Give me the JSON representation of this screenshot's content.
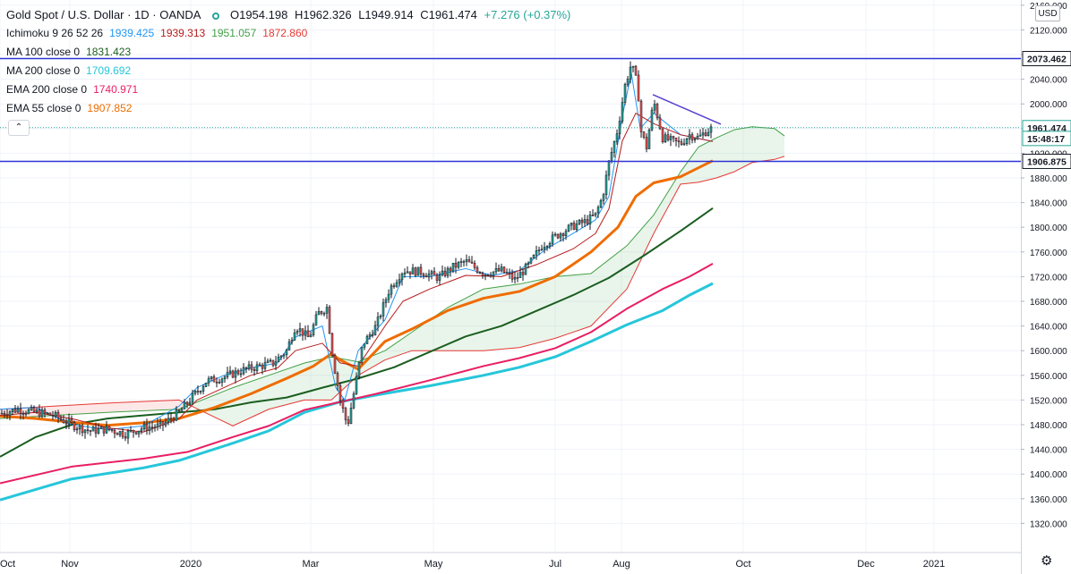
{
  "legend": {
    "symbol": "Gold Spot / U.S. Dollar · 1D · OANDA",
    "ohlc": {
      "open": "O1954.198",
      "high": "H1962.326",
      "low": "L1949.914",
      "close": "C1961.474",
      "change": "+7.276 (+0.37%)"
    },
    "indicators": [
      {
        "label": "Ichimoku 9 26 52 26",
        "values": [
          {
            "text": "1939.425",
            "color": "#2196f3"
          },
          {
            "text": "1939.313",
            "color": "#b71c1c"
          },
          {
            "text": "1951.057",
            "color": "#43a047"
          },
          {
            "text": "1872.860",
            "color": "#e53935"
          }
        ]
      },
      {
        "label": "MA 100 close 0",
        "values": [
          {
            "text": "1831.423",
            "color": "#1b5e20"
          }
        ]
      },
      {
        "label": "MA 200 close 0",
        "values": [
          {
            "text": "1709.692",
            "color": "#26c6da"
          }
        ]
      },
      {
        "label": "EMA 200 close 0",
        "values": [
          {
            "text": "1740.971",
            "color": "#e91e63"
          }
        ]
      },
      {
        "label": "EMA 55 close 0",
        "values": [
          {
            "text": "1907.852",
            "color": "#ef6c00"
          }
        ]
      }
    ]
  },
  "currency": "USD",
  "chart_data": {
    "type": "line",
    "subtype": "candlestick-with-indicators",
    "price_axis": {
      "ticks": [
        "2160.000",
        "2120.000",
        "2080.000",
        "2040.000",
        "2000.000",
        "1960.000",
        "1920.000",
        "1880.000",
        "1840.000",
        "1800.000",
        "1760.000",
        "1720.000",
        "1680.000",
        "1640.000",
        "1600.000",
        "1560.000",
        "1520.000",
        "1480.000",
        "1440.000",
        "1400.000",
        "1360.000",
        "1320.000"
      ],
      "range": [
        1292,
        2178
      ]
    },
    "time_axis": {
      "labels": [
        "Oct",
        "Nov",
        "2020",
        "Mar",
        "May",
        "Jul",
        "Aug",
        "Oct",
        "Dec",
        "2021"
      ]
    },
    "price_labels": [
      {
        "text": "2073.462",
        "price": 2073.462,
        "style": "hline"
      },
      {
        "text": "1961.474",
        "price": 1961.474,
        "style": "last"
      },
      {
        "text": "15:48:17",
        "price": 1944,
        "style": "countdown"
      },
      {
        "text": "1906.875",
        "price": 1906.875,
        "style": "hline"
      }
    ],
    "horizontal_lines": [
      2073.462,
      1906.875
    ],
    "trendline": {
      "start": {
        "price": 2015
      },
      "end": {
        "price": 1967
      }
    },
    "series": [
      {
        "name": "MA 200",
        "color": "#26c6da",
        "points": [
          [
            0,
            1358
          ],
          [
            80,
            1392
          ],
          [
            160,
            1410
          ],
          [
            200,
            1422
          ],
          [
            260,
            1450
          ],
          [
            300,
            1470
          ],
          [
            340,
            1500
          ],
          [
            380,
            1517
          ],
          [
            420,
            1528
          ],
          [
            480,
            1543
          ],
          [
            540,
            1560
          ],
          [
            580,
            1573
          ],
          [
            620,
            1590
          ],
          [
            660,
            1615
          ],
          [
            700,
            1642
          ],
          [
            740,
            1665
          ],
          [
            770,
            1690
          ],
          [
            796,
            1709
          ]
        ]
      },
      {
        "name": "EMA 200",
        "color": "#e91e63",
        "points": [
          [
            0,
            1385
          ],
          [
            80,
            1412
          ],
          [
            160,
            1425
          ],
          [
            210,
            1436
          ],
          [
            260,
            1460
          ],
          [
            300,
            1478
          ],
          [
            340,
            1504
          ],
          [
            380,
            1517
          ],
          [
            420,
            1530
          ],
          [
            480,
            1552
          ],
          [
            540,
            1575
          ],
          [
            580,
            1588
          ],
          [
            620,
            1604
          ],
          [
            660,
            1630
          ],
          [
            700,
            1668
          ],
          [
            740,
            1700
          ],
          [
            770,
            1720
          ],
          [
            796,
            1741
          ]
        ]
      },
      {
        "name": "MA 100",
        "color": "#1b5e20",
        "points": [
          [
            0,
            1428
          ],
          [
            40,
            1460
          ],
          [
            80,
            1480
          ],
          [
            120,
            1490
          ],
          [
            160,
            1495
          ],
          [
            200,
            1500
          ],
          [
            240,
            1505
          ],
          [
            280,
            1516
          ],
          [
            320,
            1524
          ],
          [
            360,
            1540
          ],
          [
            400,
            1555
          ],
          [
            440,
            1573
          ],
          [
            480,
            1598
          ],
          [
            520,
            1623
          ],
          [
            560,
            1640
          ],
          [
            600,
            1665
          ],
          [
            640,
            1690
          ],
          [
            680,
            1718
          ],
          [
            720,
            1755
          ],
          [
            760,
            1794
          ],
          [
            796,
            1831
          ]
        ]
      },
      {
        "name": "EMA 55",
        "color": "#ef6c00",
        "points": [
          [
            0,
            1494
          ],
          [
            40,
            1490
          ],
          [
            80,
            1484
          ],
          [
            120,
            1479
          ],
          [
            160,
            1483
          ],
          [
            200,
            1490
          ],
          [
            240,
            1508
          ],
          [
            280,
            1530
          ],
          [
            320,
            1555
          ],
          [
            350,
            1575
          ],
          [
            370,
            1595
          ],
          [
            380,
            1585
          ],
          [
            400,
            1570
          ],
          [
            430,
            1615
          ],
          [
            460,
            1635
          ],
          [
            500,
            1665
          ],
          [
            540,
            1685
          ],
          [
            580,
            1696
          ],
          [
            620,
            1720
          ],
          [
            660,
            1760
          ],
          [
            690,
            1800
          ],
          [
            710,
            1850
          ],
          [
            730,
            1872
          ],
          [
            760,
            1882
          ],
          [
            796,
            1908
          ]
        ]
      },
      {
        "name": "Tenkan",
        "color": "#2196f3",
        "points": [
          [
            0,
            1505
          ],
          [
            40,
            1508
          ],
          [
            80,
            1480
          ],
          [
            120,
            1472
          ],
          [
            160,
            1478
          ],
          [
            200,
            1510
          ],
          [
            220,
            1540
          ],
          [
            250,
            1560
          ],
          [
            280,
            1572
          ],
          [
            310,
            1580
          ],
          [
            330,
            1622
          ],
          [
            360,
            1640
          ],
          [
            375,
            1540
          ],
          [
            385,
            1520
          ],
          [
            400,
            1600
          ],
          [
            430,
            1650
          ],
          [
            450,
            1720
          ],
          [
            480,
            1720
          ],
          [
            520,
            1733
          ],
          [
            550,
            1722
          ],
          [
            580,
            1730
          ],
          [
            610,
            1765
          ],
          [
            640,
            1790
          ],
          [
            665,
            1812
          ],
          [
            680,
            1850
          ],
          [
            695,
            1980
          ],
          [
            705,
            2050
          ],
          [
            715,
            1960
          ],
          [
            730,
            1985
          ],
          [
            760,
            1950
          ],
          [
            796,
            1939
          ]
        ]
      },
      {
        "name": "Kijun",
        "color": "#b71c1c",
        "points": [
          [
            0,
            1495
          ],
          [
            40,
            1500
          ],
          [
            80,
            1490
          ],
          [
            120,
            1475
          ],
          [
            160,
            1468
          ],
          [
            200,
            1490
          ],
          [
            220,
            1520
          ],
          [
            250,
            1540
          ],
          [
            280,
            1560
          ],
          [
            310,
            1572
          ],
          [
            330,
            1600
          ],
          [
            360,
            1612
          ],
          [
            380,
            1580
          ],
          [
            400,
            1575
          ],
          [
            430,
            1640
          ],
          [
            450,
            1680
          ],
          [
            480,
            1700
          ],
          [
            520,
            1722
          ],
          [
            560,
            1720
          ],
          [
            600,
            1740
          ],
          [
            640,
            1765
          ],
          [
            665,
            1790
          ],
          [
            680,
            1830
          ],
          [
            695,
            1940
          ],
          [
            710,
            1985
          ],
          [
            730,
            1968
          ],
          [
            760,
            1950
          ],
          [
            796,
            1939
          ]
        ]
      }
    ],
    "cloud": {
      "spanA": {
        "color": "#43a047",
        "points": [
          [
            0,
            1490
          ],
          [
            60,
            1495
          ],
          [
            120,
            1500
          ],
          [
            200,
            1505
          ],
          [
            260,
            1540
          ],
          [
            300,
            1560
          ],
          [
            340,
            1580
          ],
          [
            370,
            1590
          ],
          [
            400,
            1582
          ],
          [
            430,
            1600
          ],
          [
            460,
            1630
          ],
          [
            500,
            1670
          ],
          [
            540,
            1700
          ],
          [
            580,
            1708
          ],
          [
            620,
            1720
          ],
          [
            660,
            1725
          ],
          [
            700,
            1770
          ],
          [
            730,
            1820
          ],
          [
            760,
            1890
          ],
          [
            780,
            1930
          ],
          [
            800,
            1945
          ],
          [
            820,
            1958
          ],
          [
            840,
            1963
          ],
          [
            865,
            1960
          ],
          [
            876,
            1948
          ]
        ]
      },
      "spanB": {
        "color": "#e53935",
        "points": [
          [
            0,
            1505
          ],
          [
            60,
            1510
          ],
          [
            120,
            1515
          ],
          [
            200,
            1520
          ],
          [
            260,
            1478
          ],
          [
            300,
            1505
          ],
          [
            340,
            1520
          ],
          [
            370,
            1520
          ],
          [
            400,
            1560
          ],
          [
            430,
            1585
          ],
          [
            460,
            1600
          ],
          [
            500,
            1600
          ],
          [
            540,
            1600
          ],
          [
            580,
            1605
          ],
          [
            620,
            1620
          ],
          [
            660,
            1640
          ],
          [
            700,
            1700
          ],
          [
            730,
            1790
          ],
          [
            760,
            1870
          ],
          [
            780,
            1873
          ],
          [
            800,
            1880
          ],
          [
            820,
            1890
          ],
          [
            840,
            1905
          ],
          [
            865,
            1910
          ],
          [
            876,
            1915
          ]
        ]
      }
    },
    "candles_note": "OHLC candles drawn from daily estimate along price path",
    "price_path": [
      [
        0,
        1498
      ],
      [
        20,
        1505
      ],
      [
        40,
        1500
      ],
      [
        60,
        1495
      ],
      [
        80,
        1480
      ],
      [
        100,
        1470
      ],
      [
        120,
        1473
      ],
      [
        140,
        1465
      ],
      [
        160,
        1475
      ],
      [
        180,
        1478
      ],
      [
        200,
        1500
      ],
      [
        215,
        1525
      ],
      [
        230,
        1550
      ],
      [
        250,
        1557
      ],
      [
        270,
        1568
      ],
      [
        290,
        1575
      ],
      [
        305,
        1580
      ],
      [
        320,
        1600
      ],
      [
        330,
        1640
      ],
      [
        345,
        1620
      ],
      [
        355,
        1660
      ],
      [
        365,
        1670
      ],
      [
        372,
        1585
      ],
      [
        380,
        1520
      ],
      [
        388,
        1478
      ],
      [
        395,
        1530
      ],
      [
        405,
        1610
      ],
      [
        420,
        1640
      ],
      [
        435,
        1700
      ],
      [
        450,
        1730
      ],
      [
        470,
        1728
      ],
      [
        490,
        1718
      ],
      [
        505,
        1735
      ],
      [
        520,
        1745
      ],
      [
        540,
        1725
      ],
      [
        560,
        1730
      ],
      [
        575,
        1715
      ],
      [
        590,
        1738
      ],
      [
        605,
        1770
      ],
      [
        625,
        1790
      ],
      [
        640,
        1802
      ],
      [
        655,
        1810
      ],
      [
        665,
        1820
      ],
      [
        673,
        1850
      ],
      [
        680,
        1905
      ],
      [
        690,
        1960
      ],
      [
        698,
        2030
      ],
      [
        705,
        2065
      ],
      [
        712,
        2030
      ],
      [
        716,
        1955
      ],
      [
        722,
        1930
      ],
      [
        730,
        2005
      ],
      [
        740,
        1945
      ],
      [
        750,
        1940
      ],
      [
        760,
        1935
      ],
      [
        770,
        1950
      ],
      [
        780,
        1945
      ],
      [
        788,
        1955
      ],
      [
        796,
        1961
      ]
    ]
  }
}
